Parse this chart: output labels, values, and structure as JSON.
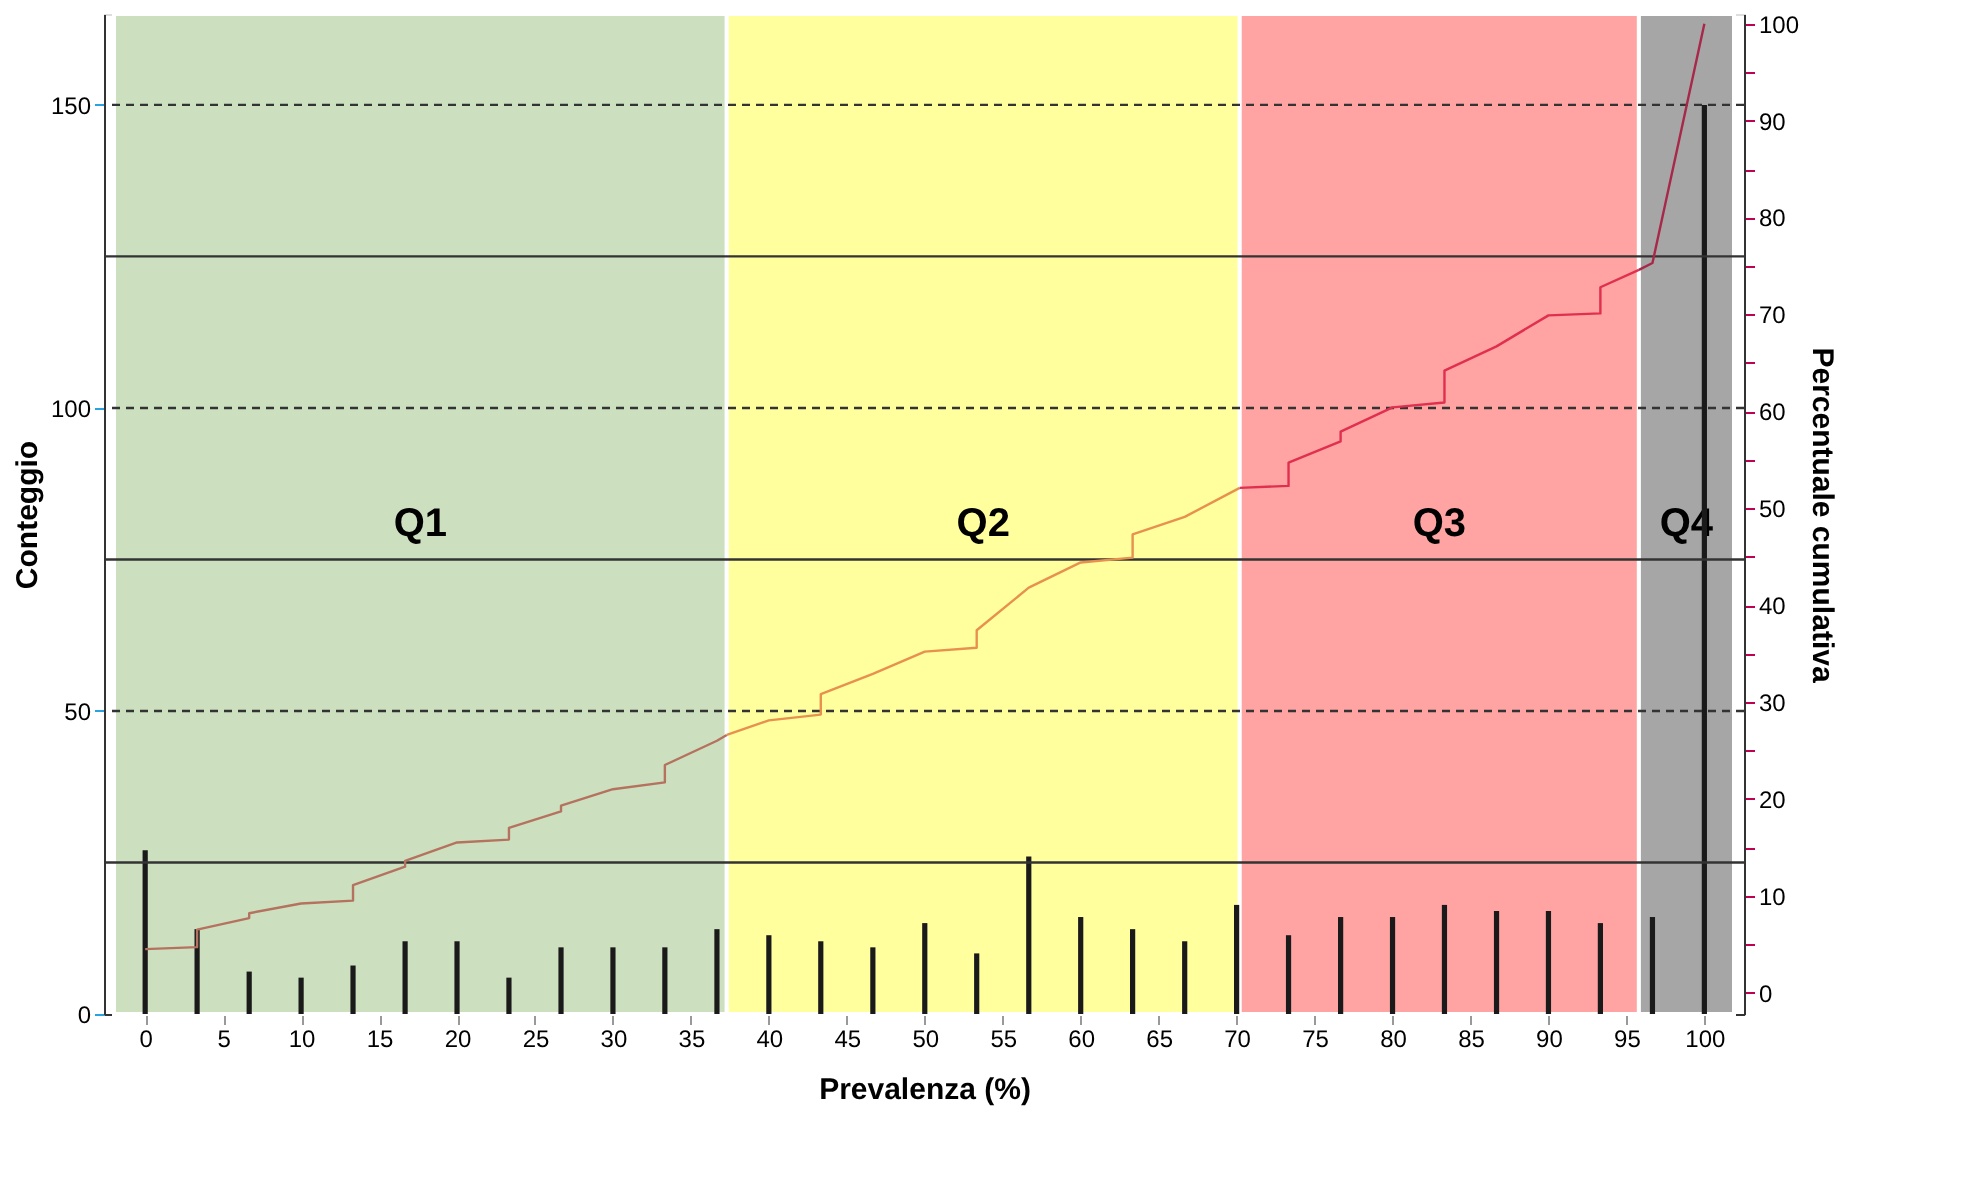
{
  "chart_data": {
    "type": "bar",
    "xlabel": "Prevalenza (%)",
    "ylabel": "Conteggio",
    "y2label": "Percentuale cumulativa",
    "xlim": [
      -2,
      101.9
    ],
    "xticks": [
      0,
      5,
      10,
      15,
      20,
      25,
      30,
      35,
      40,
      45,
      50,
      55,
      60,
      65,
      70,
      75,
      80,
      85,
      90,
      95,
      100
    ],
    "ylim": [
      0,
      165
    ],
    "yticks": [
      0,
      50,
      100,
      150
    ],
    "y2lim": [
      -2.2,
      101
    ],
    "y2ticks": [
      0,
      {
        "value": 5,
        "label": null
      },
      10,
      {
        "value": 15,
        "label": null
      },
      20,
      {
        "value": 25,
        "label": null
      },
      30,
      {
        "value": 35,
        "label": null
      },
      40,
      {
        "value": 45,
        "label": null
      },
      50,
      {
        "value": 55,
        "label": null
      },
      60,
      {
        "value": 65,
        "label": null
      },
      70,
      {
        "value": 75,
        "label": null
      },
      80,
      {
        "value": 85,
        "label": null
      },
      90,
      {
        "value": 95,
        "label": null
      },
      100
    ],
    "grid": false,
    "bands": [
      {
        "axis": "x",
        "from": -2,
        "to": 37.3,
        "label": "Q1",
        "color": "#cce0c0"
      },
      {
        "axis": "x",
        "from": 37.3,
        "to": 70.2,
        "label": "Q2",
        "color": "#ffff9e"
      },
      {
        "axis": "x",
        "from": 70.2,
        "to": 95.8,
        "label": "Q3",
        "color": "#ffa3a3"
      },
      {
        "axis": "x",
        "from": 95.8,
        "to": 101.9,
        "label": "Q4",
        "color": "#a6a6a6"
      }
    ],
    "ref_lines": [
      {
        "axis": "y",
        "value": 25,
        "line_style": "solid",
        "color": "#333333"
      },
      {
        "axis": "y",
        "value": 50,
        "line_style": "dashed",
        "color": "#333333"
      },
      {
        "axis": "y",
        "value": 75,
        "line_style": "solid",
        "color": "#333333"
      },
      {
        "axis": "y",
        "value": 100,
        "line_style": "dashed",
        "color": "#333333"
      },
      {
        "axis": "y",
        "value": 125,
        "line_style": "solid",
        "color": "#333333"
      },
      {
        "axis": "y",
        "value": 150,
        "line_style": "dashed",
        "color": "#333333"
      }
    ],
    "series": [
      {
        "type": "bar",
        "color": "#1a1a1a",
        "x": [
          0,
          3.33,
          6.67,
          10,
          13.33,
          16.67,
          20,
          23.33,
          26.67,
          30,
          33.33,
          36.67,
          40,
          43.33,
          46.67,
          50,
          53.33,
          56.67,
          60,
          63.33,
          66.67,
          70,
          73.33,
          76.67,
          80,
          83.33,
          86.67,
          90,
          93.33,
          96.67,
          100
        ],
        "values": [
          27,
          14,
          7,
          6,
          8,
          12,
          12,
          6,
          11,
          11,
          11,
          14,
          13,
          12,
          11,
          15,
          10,
          26,
          16,
          14,
          12,
          18,
          13,
          16,
          16,
          18,
          17,
          17,
          15,
          16,
          150
        ]
      },
      {
        "type": "line",
        "axis": "y2",
        "color": "#b5725f",
        "x": [
          0,
          3.33,
          3.33,
          6.67,
          6.67,
          10,
          13.33,
          13.33,
          16.67,
          16.67,
          20,
          23.33,
          23.33,
          26.67,
          26.67,
          30,
          33.33,
          33.33,
          36.67,
          37.3
        ],
        "values": [
          4.5,
          4.7,
          6.5,
          7.7,
          8.2,
          9.2,
          9.5,
          11.1,
          13.0,
          13.6,
          15.5,
          15.8,
          17.0,
          18.7,
          19.3,
          21.0,
          21.7,
          23.5,
          26.0,
          26.6
        ]
      },
      {
        "type": "line",
        "axis": "y2",
        "color": "#e8914f",
        "x": [
          37.3,
          40,
          43.33,
          43.33,
          46.67,
          50,
          53.33,
          53.33,
          56.67,
          60,
          63.33,
          63.33,
          66.67,
          70.2
        ],
        "values": [
          26.6,
          28.1,
          28.7,
          30.8,
          32.9,
          35.2,
          35.6,
          37.4,
          41.8,
          44.4,
          44.9,
          47.3,
          49.1,
          52.1
        ]
      },
      {
        "type": "line",
        "axis": "y2",
        "color": "#e0304f",
        "x": [
          70.2,
          73.33,
          73.33,
          76.67,
          76.67,
          80,
          83.33,
          83.33,
          86.67,
          90,
          93.33,
          93.33,
          95.8
        ],
        "values": [
          52.1,
          52.3,
          54.7,
          56.9,
          57.9,
          60.4,
          60.9,
          64.2,
          66.7,
          69.9,
          70.1,
          72.8,
          74.6
        ]
      },
      {
        "type": "line",
        "axis": "y2",
        "color": "#a8284a",
        "x": [
          95.8,
          96.67,
          100
        ],
        "values": [
          74.6,
          75.3,
          100
        ]
      }
    ]
  }
}
